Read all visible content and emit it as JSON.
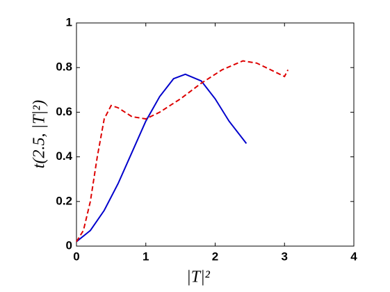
{
  "chart_data": {
    "type": "line",
    "xlabel": "|T|²",
    "ylabel": "t(2.5, |T|²)",
    "xlim": [
      0,
      4
    ],
    "ylim": [
      0,
      1
    ],
    "xticks": [
      0,
      1,
      2,
      3,
      4
    ],
    "yticks": [
      0,
      0.2,
      0.4,
      0.6,
      0.8,
      1
    ],
    "grid": false,
    "series": [
      {
        "color": "#0000cc",
        "style": "solid",
        "x": [
          0,
          0.2,
          0.4,
          0.6,
          0.8,
          1.0,
          1.2,
          1.4,
          1.57,
          1.8,
          2.0,
          2.2,
          2.45
        ],
        "values": [
          0.02,
          0.07,
          0.16,
          0.28,
          0.42,
          0.56,
          0.67,
          0.75,
          0.77,
          0.74,
          0.66,
          0.56,
          0.46
        ]
      },
      {
        "color": "#dd0000",
        "style": "dashed",
        "x": [
          0,
          0.1,
          0.2,
          0.3,
          0.4,
          0.5,
          0.6,
          0.8,
          1.0,
          1.2,
          1.5,
          1.8,
          2.1,
          2.4,
          2.6,
          2.8,
          3.0,
          3.05
        ],
        "values": [
          0.02,
          0.07,
          0.2,
          0.4,
          0.57,
          0.63,
          0.62,
          0.58,
          0.57,
          0.6,
          0.66,
          0.73,
          0.79,
          0.83,
          0.82,
          0.79,
          0.76,
          0.79
        ]
      }
    ]
  }
}
